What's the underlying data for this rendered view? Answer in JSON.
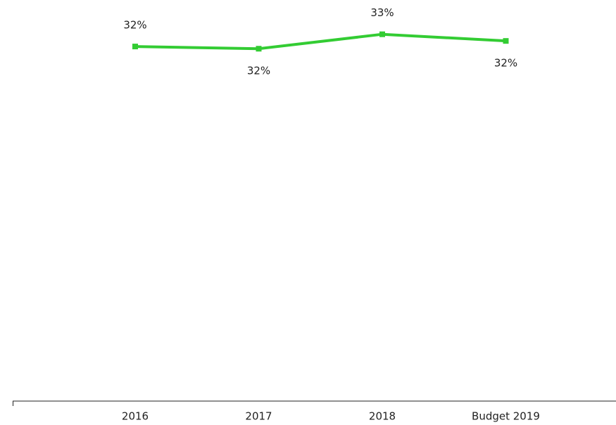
{
  "chart_data": {
    "type": "line",
    "categories": [
      "2016",
      "2017",
      "2018",
      "Budget 2019"
    ],
    "series": [
      {
        "color": "#33cc33",
        "values": [
          31.9,
          31.7,
          33.0,
          32.4
        ],
        "value_labels": [
          "32%",
          "32%",
          "33%",
          "32%"
        ]
      }
    ],
    "ylim": [
      0,
      34.5
    ]
  }
}
